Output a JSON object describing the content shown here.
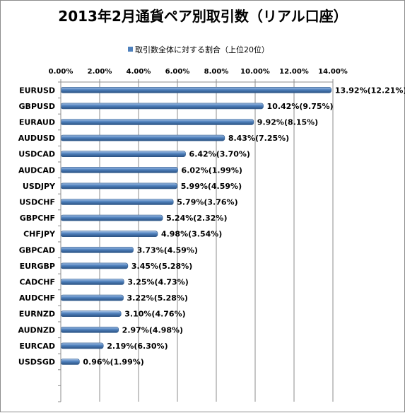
{
  "chart_data": {
    "type": "bar",
    "orientation": "horizontal",
    "title": "2013年2月通貨ペア別取引数（リアル口座）",
    "series": [
      {
        "name": "取引数全体に対する割合（上位20位）",
        "color": "#4f81bd"
      }
    ],
    "categories": [
      "EURUSD",
      "GBPUSD",
      "EURAUD",
      "AUDUSD",
      "USDCAD",
      "AUDCAD",
      "USDJPY",
      "USDCHF",
      "GBPCHF",
      "CHFJPY",
      "GBPCAD",
      "EURGBP",
      "CADCHF",
      "AUDCHF",
      "EURNZD",
      "AUDNZD",
      "EURCAD",
      "USDSGD",
      "",
      ""
    ],
    "values": [
      13.92,
      10.42,
      9.92,
      8.43,
      6.42,
      6.02,
      5.99,
      5.79,
      5.24,
      4.98,
      3.73,
      3.45,
      3.25,
      3.22,
      3.1,
      2.97,
      2.19,
      0.96,
      null,
      null
    ],
    "data_labels": [
      "13.92%(12.21%)",
      "10.42%(9.75%)",
      "9.92%(8.15%)",
      "8.43%(7.25%)",
      "6.42%(3.70%)",
      "6.02%(1.99%)",
      "5.99%(4.59%)",
      "5.79%(3.76%)",
      "5.24%(2.32%)",
      "4.98%(3.54%)",
      "3.73%(4.59%)",
      "3.45%(5.28%)",
      "3.25%(4.73%)",
      "3.22%(5.28%)",
      "3.10%(4.76%)",
      "2.97%(4.98%)",
      "2.19%(6.30%)",
      "0.96%(1.99%)",
      "",
      ""
    ],
    "xlim": [
      0,
      14
    ],
    "x_ticks": [
      "0.00%",
      "2.00%",
      "4.00%",
      "6.00%",
      "8.00%",
      "10.00%",
      "12.00%",
      "14.00%"
    ],
    "x_axis_position": "top",
    "grid": true,
    "legend": "top-center"
  }
}
